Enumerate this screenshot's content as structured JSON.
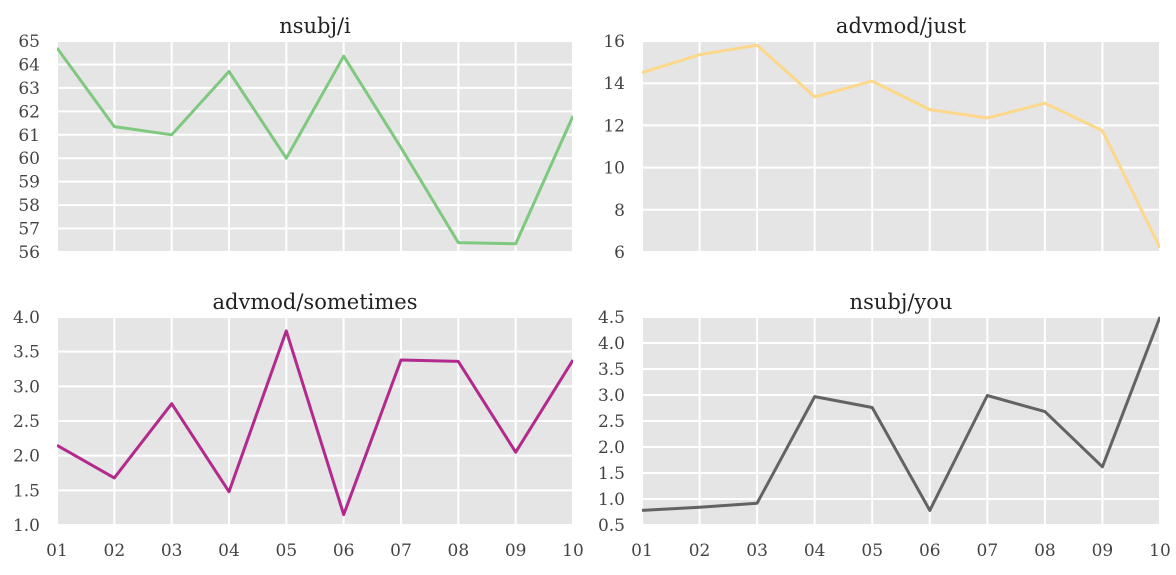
{
  "chart_data": [
    {
      "type": "line",
      "title": "nsubj/i",
      "x": [
        "01",
        "02",
        "03",
        "04",
        "05",
        "06",
        "07",
        "08",
        "09",
        "10"
      ],
      "series": [
        {
          "values": [
            64.7,
            61.35,
            61.0,
            63.7,
            60.0,
            64.35,
            60.45,
            56.4,
            56.35,
            61.8
          ]
        }
      ],
      "ylim": [
        56,
        65
      ],
      "yticks": [
        "56",
        "57",
        "58",
        "59",
        "60",
        "61",
        "62",
        "63",
        "64",
        "65"
      ],
      "show_xticklabels": false,
      "grid": true,
      "color": "#7fc97f"
    },
    {
      "type": "line",
      "title": "advmod/just",
      "x": [
        "01",
        "02",
        "03",
        "04",
        "05",
        "06",
        "07",
        "08",
        "09",
        "10"
      ],
      "series": [
        {
          "values": [
            14.5,
            15.35,
            15.8,
            13.35,
            14.1,
            12.75,
            12.35,
            13.05,
            11.75,
            6.2
          ]
        }
      ],
      "ylim": [
        6,
        16
      ],
      "yticks": [
        "6",
        "8",
        "10",
        "12",
        "14",
        "16"
      ],
      "show_xticklabels": false,
      "grid": true,
      "color": "#fdd78a"
    },
    {
      "type": "line",
      "title": "advmod/sometimes",
      "x": [
        "01",
        "02",
        "03",
        "04",
        "05",
        "06",
        "07",
        "08",
        "09",
        "10"
      ],
      "series": [
        {
          "values": [
            2.15,
            1.68,
            2.75,
            1.48,
            3.8,
            1.15,
            3.38,
            3.36,
            2.05,
            3.38
          ]
        }
      ],
      "ylim": [
        1.0,
        4.0
      ],
      "yticks": [
        "1.0",
        "1.5",
        "2.0",
        "2.5",
        "3.0",
        "3.5",
        "4.0"
      ],
      "show_xticklabels": true,
      "grid": true,
      "color": "#b22a8e"
    },
    {
      "type": "line",
      "title": "nsubj/you",
      "x": [
        "01",
        "02",
        "03",
        "04",
        "05",
        "06",
        "07",
        "08",
        "09",
        "10"
      ],
      "series": [
        {
          "values": [
            0.78,
            0.84,
            0.92,
            2.97,
            2.76,
            0.78,
            2.99,
            2.68,
            1.62,
            4.5
          ]
        }
      ],
      "ylim": [
        0.5,
        4.5
      ],
      "yticks": [
        "0.5",
        "1.0",
        "1.5",
        "2.0",
        "2.5",
        "3.0",
        "3.5",
        "4.0",
        "4.5"
      ],
      "show_xticklabels": true,
      "grid": true,
      "color": "#636363"
    }
  ]
}
